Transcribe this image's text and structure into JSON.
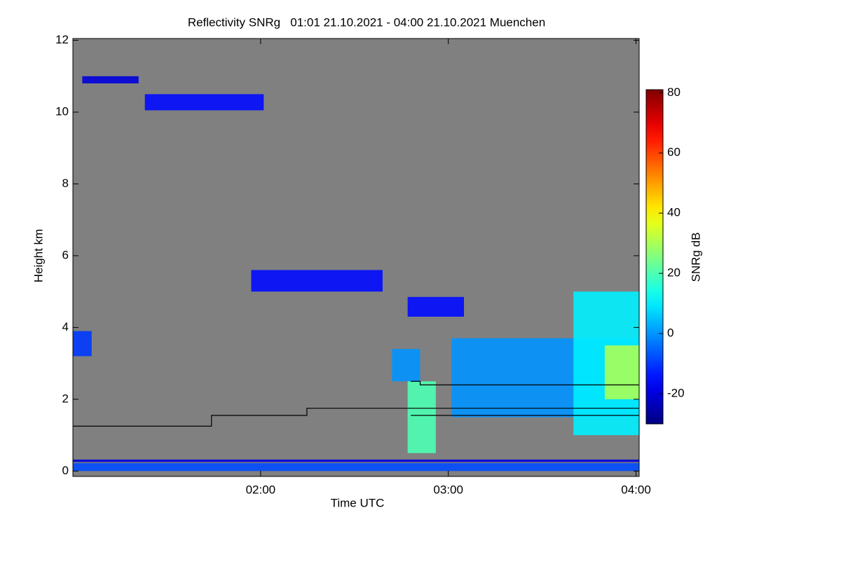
{
  "chart_data": {
    "type": "time-height",
    "title": "Reflectivity SNRg   01:01 21.10.2021 - 04:00 21.10.2021 Muenchen",
    "xlabel": "Time UTC",
    "ylabel": "Height km",
    "colorbar_label": "SNRg dB",
    "colormap": "jet",
    "background": "#808080",
    "xlim": [
      60,
      241
    ],
    "xticks": [
      {
        "value": 120,
        "label": "02:00"
      },
      {
        "value": 180,
        "label": "03:00"
      },
      {
        "value": 240,
        "label": "04:00"
      }
    ],
    "ylim": [
      -0.15,
      12.05
    ],
    "yticks": [
      0,
      2,
      4,
      6,
      8,
      10,
      12
    ],
    "clim": [
      -30,
      81
    ],
    "cticks": [
      80,
      60,
      40,
      20,
      0,
      -20
    ],
    "features": [
      {
        "x": [
          63,
          81
        ],
        "y": [
          10.8,
          11.0
        ],
        "value": -20
      },
      {
        "x": [
          83,
          121
        ],
        "y": [
          10.05,
          10.5
        ],
        "value": -15
      },
      {
        "x": [
          117,
          159
        ],
        "y": [
          5.0,
          5.6
        ],
        "value": -15
      },
      {
        "x": [
          167,
          185
        ],
        "y": [
          4.3,
          4.85
        ],
        "value": -15
      },
      {
        "x": [
          60,
          66
        ],
        "y": [
          3.2,
          3.9
        ],
        "value": -10
      },
      {
        "x": [
          162,
          171
        ],
        "y": [
          2.5,
          3.4
        ],
        "value": 0
      },
      {
        "x": [
          167,
          176
        ],
        "y": [
          0.5,
          2.5
        ],
        "value": 20
      },
      {
        "x": [
          181,
          241
        ],
        "y": [
          1.5,
          3.7
        ],
        "value": 0
      },
      {
        "x": [
          220,
          241
        ],
        "y": [
          1.0,
          5.0
        ],
        "value": 10
      },
      {
        "x": [
          230,
          241
        ],
        "y": [
          2.0,
          3.5
        ],
        "value": 30
      },
      {
        "x": [
          60,
          241
        ],
        "y": [
          0.25,
          0.32
        ],
        "value": -20
      },
      {
        "x": [
          60,
          241
        ],
        "y": [
          0.0,
          0.22
        ],
        "value": -8
      }
    ],
    "lines": [
      {
        "color": "#000000",
        "x": [
          60,
          104.3,
          104.3,
          134.8,
          134.8,
          241
        ],
        "y": [
          1.25,
          1.25,
          1.55,
          1.55,
          1.75,
          1.75
        ]
      },
      {
        "color": "#000000",
        "x": [
          168,
          171,
          171,
          241
        ],
        "y": [
          2.5,
          2.5,
          2.4,
          2.4
        ]
      },
      {
        "color": "#000000",
        "x": [
          168,
          241
        ],
        "y": [
          1.55,
          1.55
        ]
      }
    ]
  }
}
